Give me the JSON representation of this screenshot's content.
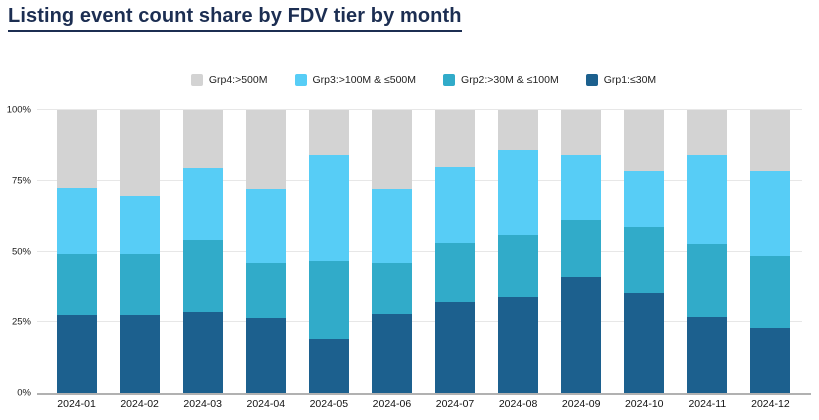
{
  "title": "Listing event count share by FDV tier by month",
  "colors": {
    "title_navy": "#1c2e52",
    "grid_line": "#e7e7e7",
    "axis_line": "#b1b1b1",
    "background": "#ffffff"
  },
  "chart_data": {
    "type": "bar",
    "stacked": true,
    "stacking": "percent",
    "grid": true,
    "legend_position": "top-center",
    "ylim": [
      0,
      100
    ],
    "yticks": [
      0,
      25,
      50,
      75,
      100
    ],
    "ytick_suffix": "%",
    "categories": [
      "2024-01",
      "2024-02",
      "2024-03",
      "2024-04",
      "2024-05",
      "2024-06",
      "2024-07",
      "2024-08",
      "2024-09",
      "2024-10",
      "2024-11",
      "2024-12"
    ],
    "series": [
      {
        "key": "grp4",
        "name": "Grp4:>500M",
        "color": "#d3d3d3",
        "values": [
          27.5,
          30.5,
          20.5,
          28,
          16,
          28,
          20,
          14,
          16,
          21.5,
          16,
          21.5
        ]
      },
      {
        "key": "grp3",
        "name": "Grp3:>100M & ≤500M",
        "color": "#57cdf6",
        "values": [
          23.5,
          20.5,
          25.5,
          26,
          37.5,
          26,
          27,
          30,
          23,
          20,
          31.5,
          30
        ]
      },
      {
        "key": "grp2",
        "name": "Grp2:>30M & ≤100M",
        "color": "#31abc9",
        "values": [
          21.5,
          21.5,
          25.5,
          19.5,
          27.5,
          18,
          21,
          22,
          20,
          23,
          25.5,
          25.5
        ]
      },
      {
        "key": "grp1",
        "name": "Grp1:≤30M",
        "color": "#1c608e",
        "values": [
          27.5,
          27.5,
          28.5,
          26.5,
          19,
          28,
          32,
          34,
          41,
          35.5,
          27,
          23
        ]
      }
    ]
  }
}
